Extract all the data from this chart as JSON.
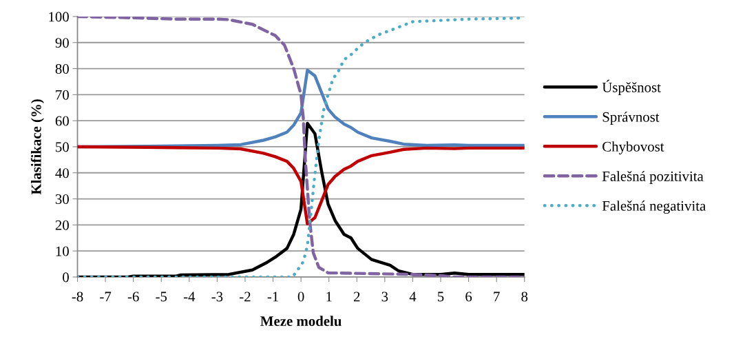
{
  "chart_data": {
    "type": "line",
    "xlabel": "Meze modelu",
    "ylabel": "Klasifikace (%)",
    "xlim": [
      -8,
      8
    ],
    "xticks": [
      -8,
      -7,
      -6,
      -5,
      -4,
      -3,
      -2,
      -1,
      0,
      1,
      2,
      3,
      4,
      5,
      6,
      7,
      8
    ],
    "ylim": [
      0,
      100
    ],
    "yticks": [
      0,
      10,
      20,
      30,
      40,
      50,
      60,
      70,
      80,
      90,
      100
    ],
    "grid": "y",
    "legend": "right",
    "series": [
      {
        "name": "Úspěšnost",
        "color": "#000000",
        "line_style": "solid",
        "x": [
          -8,
          -6.2,
          -6,
          -4.5,
          -4.3,
          -2.58,
          -1.74,
          -1.25,
          -0.92,
          -0.5,
          -0.26,
          0.0,
          0.23,
          0.5,
          0.73,
          0.97,
          1.22,
          1.54,
          1.79,
          2.03,
          2.53,
          3.19,
          3.5,
          4.0,
          5.0,
          5.5,
          6.0,
          8
        ],
        "values": [
          0,
          0,
          0.3,
          0.3,
          0.8,
          1,
          2.7,
          5.4,
          7.6,
          11,
          16.4,
          26,
          59,
          55,
          41,
          28,
          21.7,
          16.4,
          15,
          11,
          6.7,
          4.5,
          2.3,
          1,
          1,
          1.5,
          1,
          1
        ]
      },
      {
        "name": "Správnost",
        "color": "#4f81bd",
        "line_style": "solid",
        "x": [
          -8,
          -5.5,
          -3,
          -2.16,
          -1.34,
          -0.92,
          -0.5,
          -0.26,
          0.0,
          0.23,
          0.5,
          0.73,
          0.97,
          1.22,
          1.54,
          1.79,
          2.03,
          2.53,
          3.19,
          3.68,
          4.5,
          5.5,
          6.0,
          8
        ],
        "values": [
          50,
          50.2,
          50.5,
          50.8,
          52.5,
          53.8,
          55.6,
          58.3,
          63,
          79.4,
          77.2,
          71,
          64.5,
          61.4,
          58.7,
          57.4,
          55.6,
          53.4,
          52.1,
          51,
          50.5,
          50.7,
          50.5,
          50.5
        ]
      },
      {
        "name": "Chybovost",
        "color": "#c00000",
        "line_style": "solid",
        "x": [
          -8,
          -5.5,
          -3,
          -2.16,
          -1.34,
          -0.92,
          -0.5,
          -0.26,
          0.0,
          0.23,
          0.5,
          0.73,
          0.97,
          1.22,
          1.54,
          1.79,
          2.03,
          2.53,
          3.19,
          3.68,
          4.5,
          5.5,
          6.0,
          8
        ],
        "values": [
          50,
          49.8,
          49.5,
          49.2,
          47.5,
          46.2,
          44.4,
          41.7,
          36.7,
          20.4,
          22.8,
          29,
          35.5,
          38.6,
          41.3,
          42.6,
          44.4,
          46.6,
          47.9,
          49,
          49.5,
          49.3,
          49.5,
          49.5
        ]
      },
      {
        "name": "Falešná pozitivita",
        "color": "#8064a2",
        "line_style": "dashed",
        "x": [
          -8,
          -6,
          -4.5,
          -3,
          -2.58,
          -1.74,
          -1.25,
          -0.92,
          -0.59,
          -0.26,
          0.0,
          0.08,
          0.15,
          0.31,
          0.44,
          0.64,
          0.97,
          4.0,
          5.0,
          5.5,
          8
        ],
        "values": [
          100,
          99.5,
          99,
          99,
          98.8,
          97,
          94.4,
          92.7,
          89,
          80,
          70,
          61.4,
          46,
          21.7,
          9.3,
          3.7,
          1.6,
          1,
          0.5,
          0,
          0
        ]
      },
      {
        "name": "Falešná negativita",
        "color": "#4bacc6",
        "line_style": "dotted",
        "x": [
          -8,
          -0.3,
          0.08,
          0.23,
          0.35,
          0.48,
          0.64,
          0.81,
          0.97,
          1.14,
          1.34,
          1.54,
          1.87,
          2.07,
          2.36,
          2.77,
          3.35,
          3.88,
          4.0,
          5.0,
          6.0,
          7.5,
          8
        ],
        "values": [
          0,
          0,
          5.8,
          12,
          24,
          37.6,
          52.6,
          64,
          70,
          76,
          79,
          83.4,
          86,
          88.3,
          90.5,
          93,
          95.3,
          97.5,
          98,
          98.5,
          99,
          99.3,
          99.5
        ]
      }
    ]
  }
}
